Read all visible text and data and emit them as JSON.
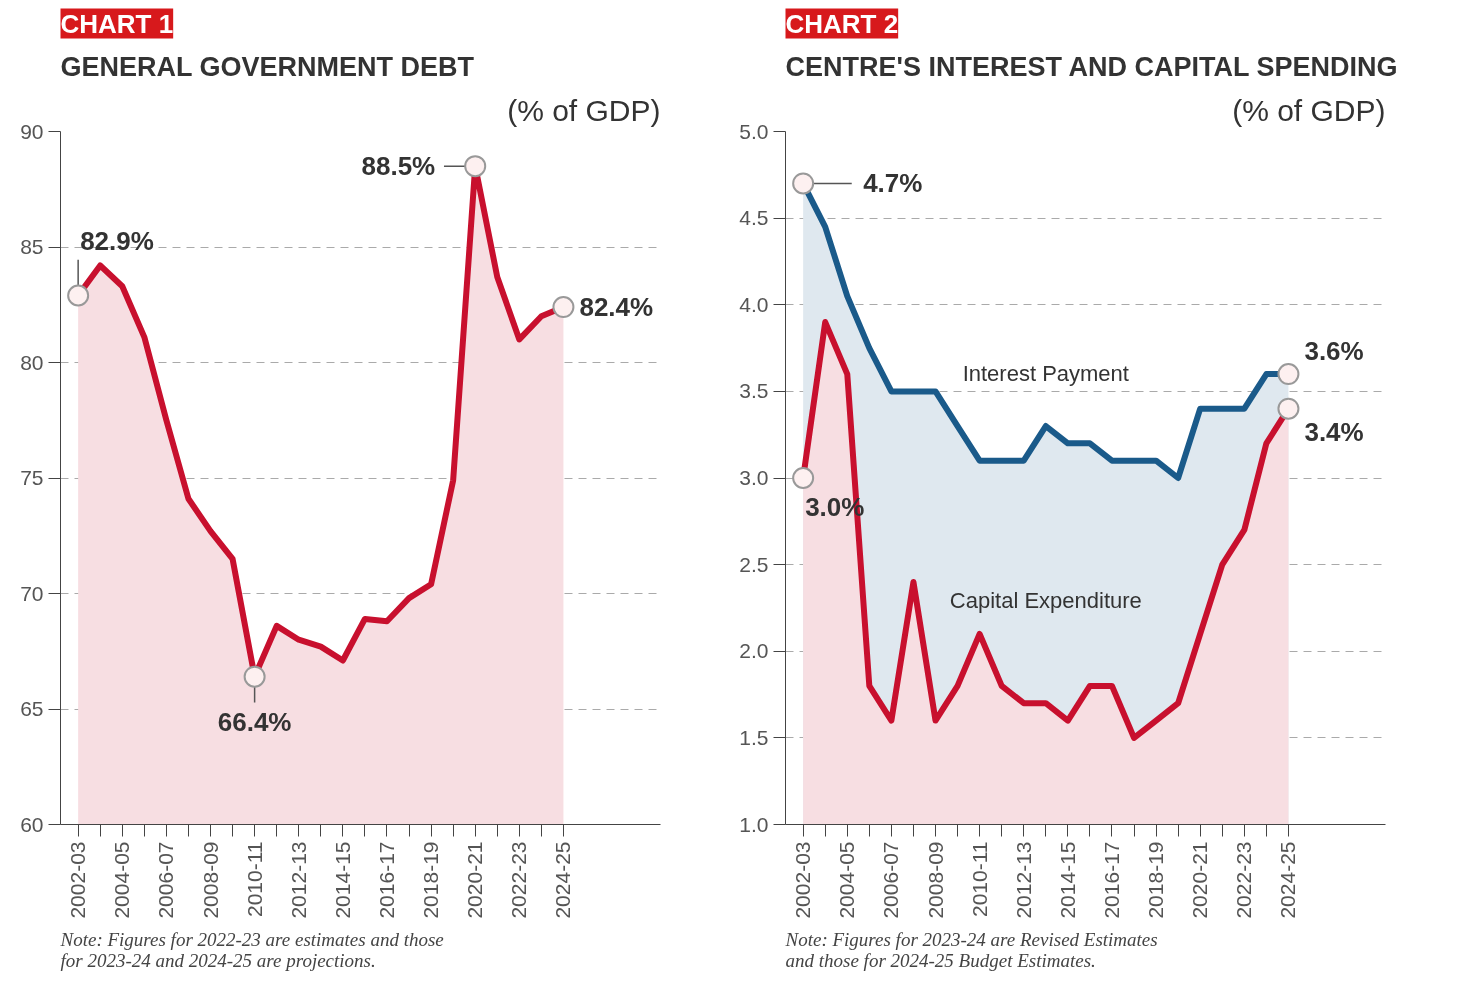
{
  "chart_data": [
    {
      "type": "area",
      "title": "GENERAL GOVERNMENT DEBT",
      "ylabel": "(% of GDP)",
      "categories": [
        "2002-03",
        null,
        "2004-05",
        null,
        "2006-07",
        null,
        "2008-09",
        null,
        "2010-11",
        null,
        "2012-13",
        null,
        "2014-15",
        null,
        "2016-17",
        null,
        "2018-19",
        null,
        "2020-21",
        null,
        "2022-23",
        null,
        "2024-25"
      ],
      "values": [
        82.9,
        84.2,
        83.3,
        81.1,
        77.5,
        74.1,
        72.7,
        71.5,
        66.4,
        68.6,
        68.0,
        67.7,
        67.1,
        68.9,
        68.8,
        69.8,
        70.4,
        74.9,
        88.5,
        83.7,
        81.0,
        82.0,
        82.4
      ],
      "color": "#c8102e",
      "ylim": [
        60,
        90
      ],
      "yticks": [
        60,
        65,
        70,
        75,
        80,
        85,
        90
      ],
      "grid": "y",
      "annotations": [
        "CHART 1",
        {
          "text": "82.9%",
          "x": "2002-03",
          "y": 82.9
        },
        {
          "text": "66.4%",
          "x": "2010-11",
          "y": 66.4
        },
        {
          "text": "88.5%",
          "x": "2020-21",
          "y": 88.5
        },
        {
          "text": "82.4%",
          "x": "2024-25",
          "y": 82.4
        },
        "Note: Figures for 2022-23 are estimates and those for 2023-24 and 2024-25 are projections."
      ]
    },
    {
      "type": "area",
      "title": "CENTRE'S INTEREST AND CAPITAL SPENDING",
      "ylabel": "(% of GDP)",
      "categories": [
        "2002-03",
        null,
        "2004-05",
        null,
        "2006-07",
        null,
        "2008-09",
        null,
        "2010-11",
        null,
        "2012-13",
        null,
        "2014-15",
        null,
        "2016-17",
        null,
        "2018-19",
        null,
        "2020-21",
        null,
        "2022-23",
        null,
        "2024-25"
      ],
      "series": [
        {
          "name": "Interest Payment",
          "color": "#1a5a8a",
          "values": [
            4.7,
            4.45,
            4.05,
            3.75,
            3.5,
            3.5,
            3.5,
            3.3,
            3.1,
            3.1,
            3.1,
            3.3,
            3.2,
            3.2,
            3.1,
            3.1,
            3.1,
            3.0,
            3.4,
            3.4,
            3.4,
            3.6,
            3.6
          ]
        },
        {
          "name": "Capital Expenditure",
          "color": "#c8102e",
          "values": [
            3.0,
            3.9,
            3.6,
            1.8,
            1.6,
            2.4,
            1.6,
            1.8,
            2.1,
            1.8,
            1.7,
            1.7,
            1.6,
            1.8,
            1.8,
            1.5,
            1.6,
            1.7,
            2.1,
            2.5,
            2.7,
            3.2,
            3.4
          ]
        }
      ],
      "ylim": [
        1,
        5
      ],
      "yticks": [
        {
          "value": 1,
          "label": "1.0"
        },
        1.5,
        {
          "value": 2,
          "label": "2.0"
        },
        2.5,
        {
          "value": 3,
          "label": "3.0"
        },
        3.5,
        {
          "value": 4,
          "label": "4.0"
        },
        4.5,
        {
          "value": 5,
          "label": "5.0"
        }
      ],
      "grid": "y",
      "annotations": [
        "CHART 2",
        {
          "text": "4.7%",
          "x": "2002-03",
          "y": 4.7
        },
        {
          "text": "3.0%",
          "x": "2002-03",
          "y": 3.0
        },
        {
          "text": "3.6%",
          "x": "2024-25",
          "y": 3.6
        },
        {
          "text": "3.4%",
          "x": "2024-25",
          "y": 3.4
        },
        "Note: Figures for 2023-24 are Revised Estimates and those for 2024-25 Budget Estimates."
      ]
    }
  ]
}
